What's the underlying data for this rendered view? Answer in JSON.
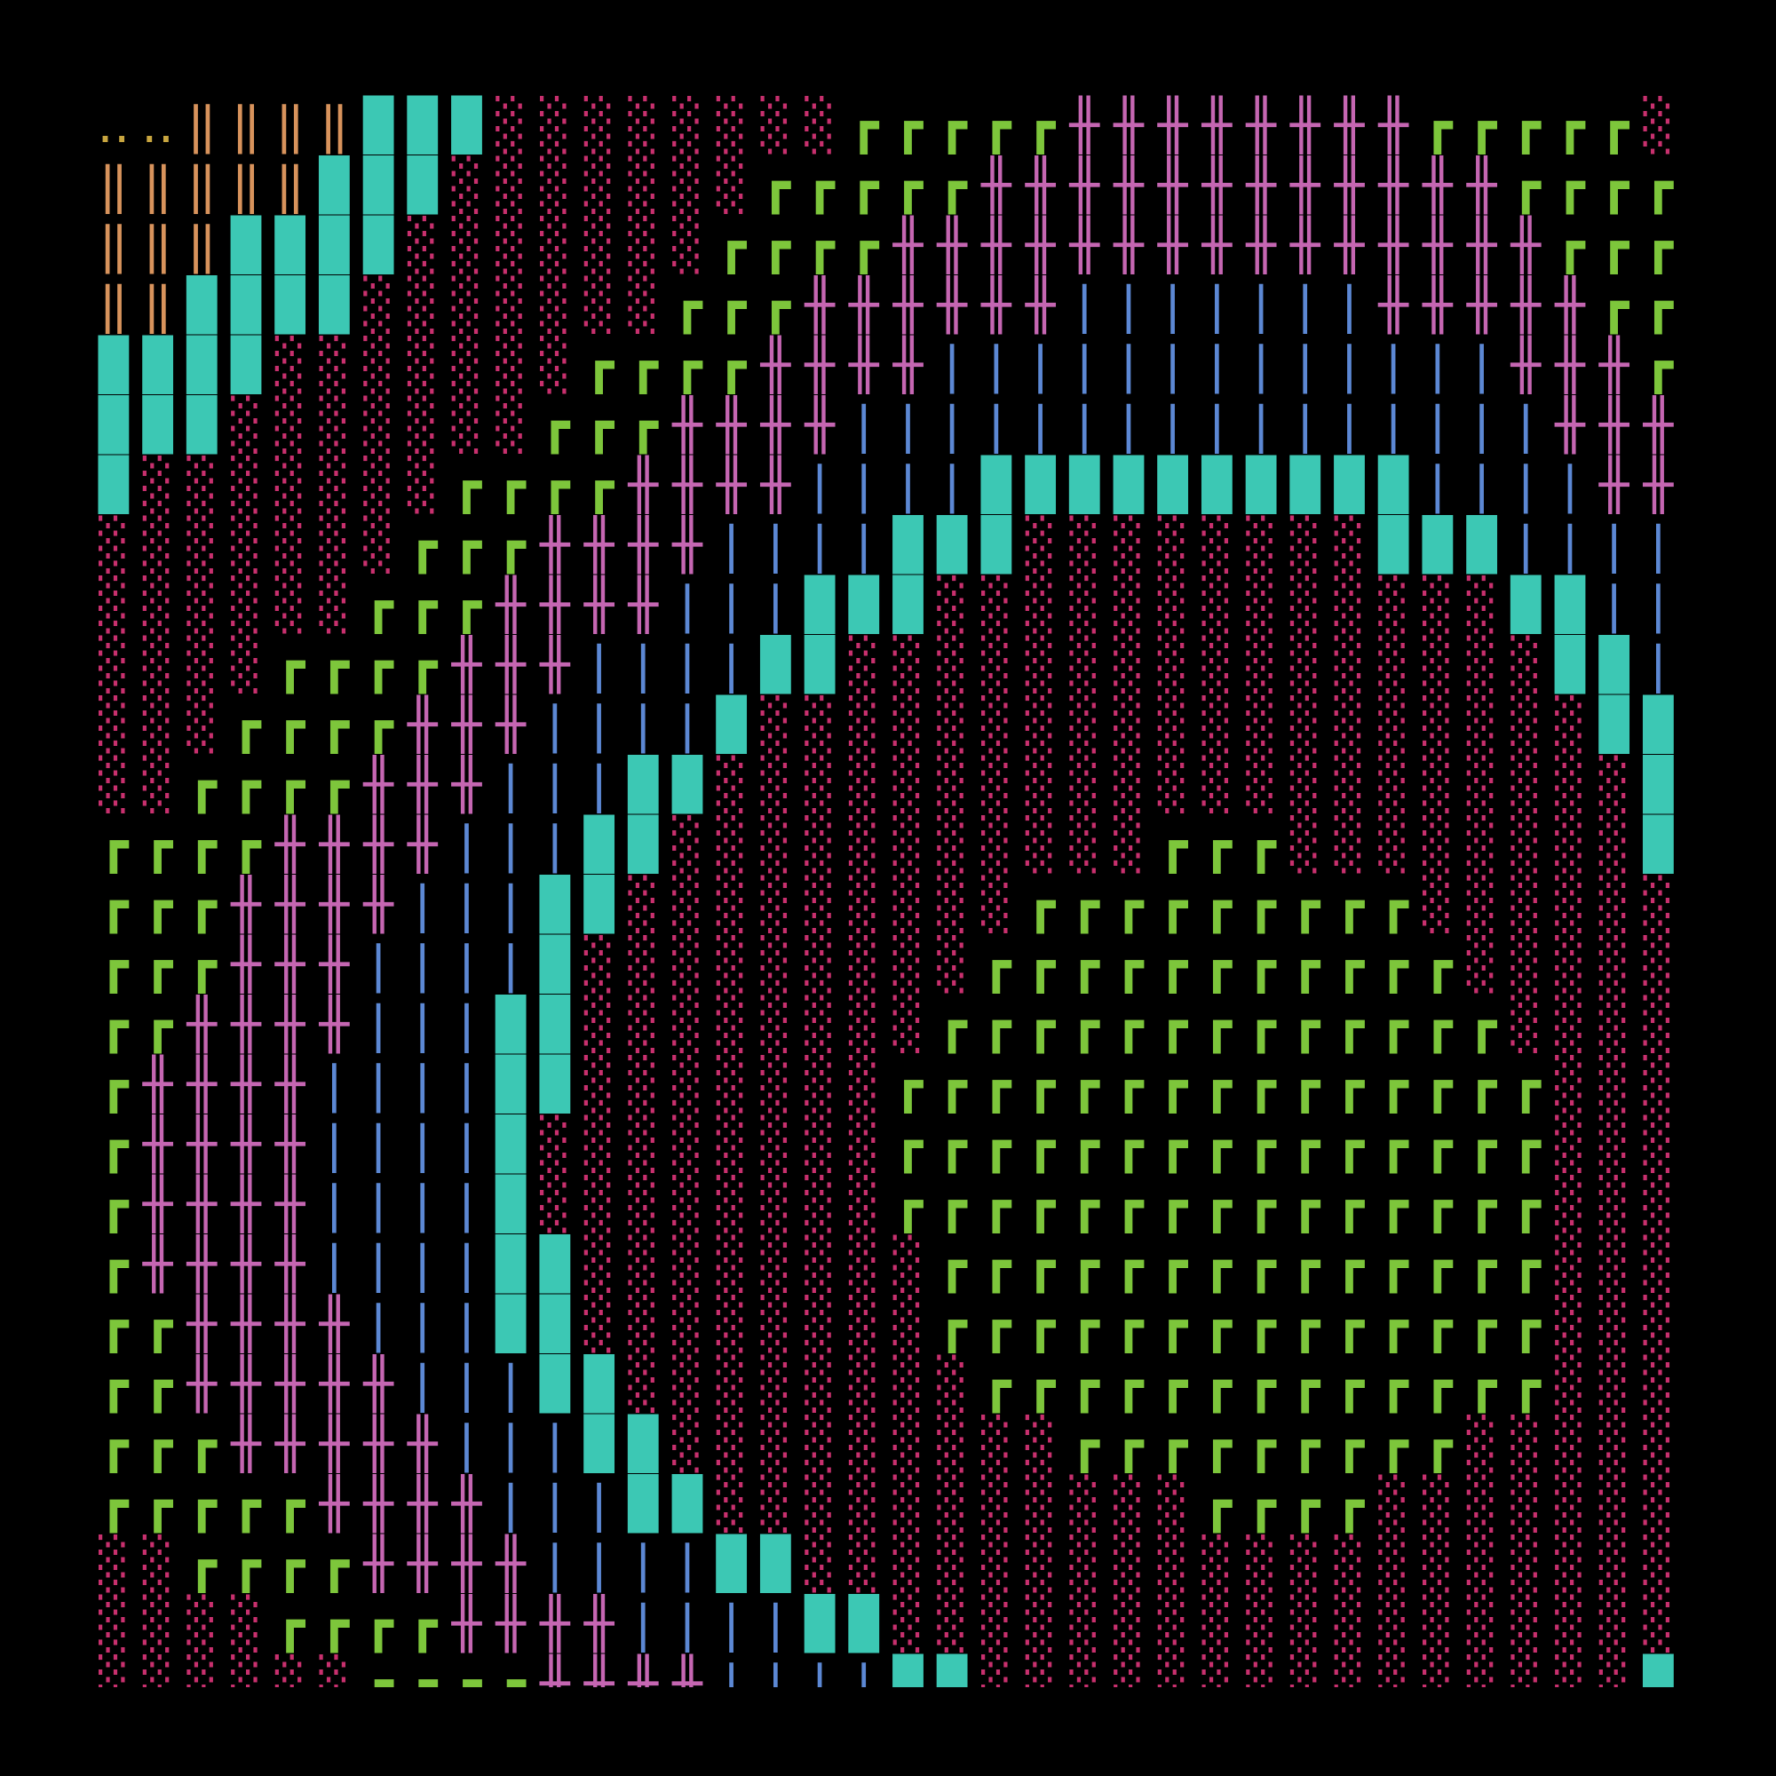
{
  "screen": {
    "rows": [
      "‥‥‖‖‖‖███░░░░░░░░┏┏┏┏┏╫╫╫╫╫╫╫╫┏┏┏┏┏░",
      "‖‖‖‖‖███░░░░░░░┏┏┏┏┏╫╫╫╫╫╫╫╫╫╫╫╫┏┏┏┏",
      "‖‖‖████░░░░░░░┏┏┏┏╫╫╫╫╫╫╫╫╫╫╫╫╫╫╫┏┏┏",
      "‖‖████░░░░░░░┏┏┏╫╫╫╫╫╫|||||||╫╫╫╫╫┏┏",
      "████░░░░░░░┏┏┏┏╫╫╫╫|||||||||||||╫╫╫┏",
      "███░░░░░░░┏┏┏╫╫╫╫||||||||||||||||╫╫╫",
      "█░░░░░░░┏┏┏┏╫╫╫╫||||██████████||||╫╫",
      "░░░░░░░┏┏┏╫╫╫╫||||███░░░░░░░░███||||",
      "░░░░░░┏┏┏╫╫╫╫|||███░░░░░░░░░░░░░██||",
      "░░░░┏┏┏┏╫╫╫||||██░░░░░░░░░░░░░░░░██|",
      "░░░┏┏┏┏╫╫╫||||█░░░░░░░░░░░░░░░░░░░██",
      "░░┏┏┏┏╫╫╫|||██░░░░░░░░░░░░░░░░░░░░░█",
      "┏┏┏┏╫╫╫╫|||██░░░░░░░░░░░┏┏┏░░░░░░░░█",
      "┏┏┏╫╫╫╫|||██░░░░░░░░░┏┏┏┏┏┏┏┏┏░░░░░░",
      "┏┏┏╫╫╫||||█░░░░░░░░░┏┏┏┏┏┏┏┏┏┏┏░░░░░",
      "┏┏╫╫╫╫|||██░░░░░░░░┏┏┏┏┏┏┏┏┏┏┏┏┏░░░░",
      "┏╫╫╫╫||||██░░░░░░░┏┏┏┏┏┏┏┏┏┏┏┏┏┏┏░░░",
      "┏╫╫╫╫||||█░░░░░░░░┏┏┏┏┏┏┏┏┏┏┏┏┏┏┏░░░",
      "┏╫╫╫╫||||█░░░░░░░░┏┏┏┏┏┏┏┏┏┏┏┏┏┏┏░░░",
      "┏╫╫╫╫||||██░░░░░░░░┏┏┏┏┏┏┏┏┏┏┏┏┏┏░░░",
      "┏┏╫╫╫╫|||██░░░░░░░░┏┏┏┏┏┏┏┏┏┏┏┏┏┏░░░",
      "┏┏╫╫╫╫╫|||██░░░░░░░░┏┏┏┏┏┏┏┏┏┏┏┏┏░░░",
      "┏┏┏╫╫╫╫╫|||██░░░░░░░░░┏┏┏┏┏┏┏┏┏░░░░░",
      "┏┏┏┏┏╫╫╫╫|||██░░░░░░░░░░░┏┏┏┏░░░░░░░",
      "░░┏┏┏┏╫╫╫╫||||██░░░░░░░░░░░░░░░░░░░░",
      "░░░░┏┏┏┏╫╫╫╫||||██░░░░░░░░░░░░░░░░░░",
      "░░░░░░┏┏┏┏╫╫╫╫||||██░░░░░░░░░░░░░░░█"
    ],
    "colors": {
      "█": "#3cc8b4",
      "┏": "#7dc63b",
      "╫": "#c566b2",
      "|": "#5c88d4",
      "‖": "#d8935c",
      "‥": "#c9a640",
      "░": "#c8306e"
    }
  }
}
